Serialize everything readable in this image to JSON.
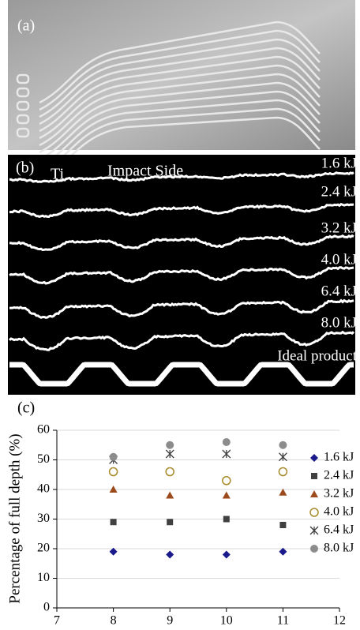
{
  "panel_a": {
    "label": "(a)"
  },
  "panel_b": {
    "label": "(b)",
    "material": "Ti",
    "side": "Impact Side",
    "profiles": [
      "1.6 kJ",
      "2.4 kJ",
      "3.2 kJ",
      "4.0 kJ",
      "6.4 kJ",
      "8.0 kJ",
      "Ideal product"
    ]
  },
  "chart_data": {
    "type": "scatter",
    "panel_label": "(c)",
    "y_label": "Percentage of full depth (%)",
    "x": [
      8,
      9,
      10,
      11
    ],
    "series": [
      {
        "name": "1.6 kJ",
        "color": "#1a1a8c",
        "marker": "diamond",
        "values": [
          19,
          18,
          18,
          19
        ]
      },
      {
        "name": "2.4 kJ",
        "color": "#404040",
        "marker": "square",
        "values": [
          29,
          29,
          30,
          28
        ]
      },
      {
        "name": "3.2 kJ",
        "color": "#9c4a1c",
        "marker": "triangle",
        "values": [
          40,
          38,
          38,
          39
        ]
      },
      {
        "name": "4.0 kJ",
        "color": "#a88a2a",
        "marker": "circle-open",
        "values": [
          46,
          46,
          43,
          46
        ]
      },
      {
        "name": "6.4 kJ",
        "color": "#404040",
        "marker": "asterisk",
        "values": [
          50,
          52,
          52,
          51
        ]
      },
      {
        "name": "8.0 kJ",
        "color": "#8c8c8c",
        "marker": "circle",
        "values": [
          51,
          55,
          56,
          55
        ]
      }
    ],
    "xlim": [
      7,
      12
    ],
    "xticks": [
      7,
      8,
      9,
      10,
      11,
      12
    ],
    "ylim": [
      0,
      60
    ],
    "yticks": [
      0,
      10,
      20,
      30,
      40,
      50,
      60
    ],
    "grid": true,
    "legend": "right"
  }
}
